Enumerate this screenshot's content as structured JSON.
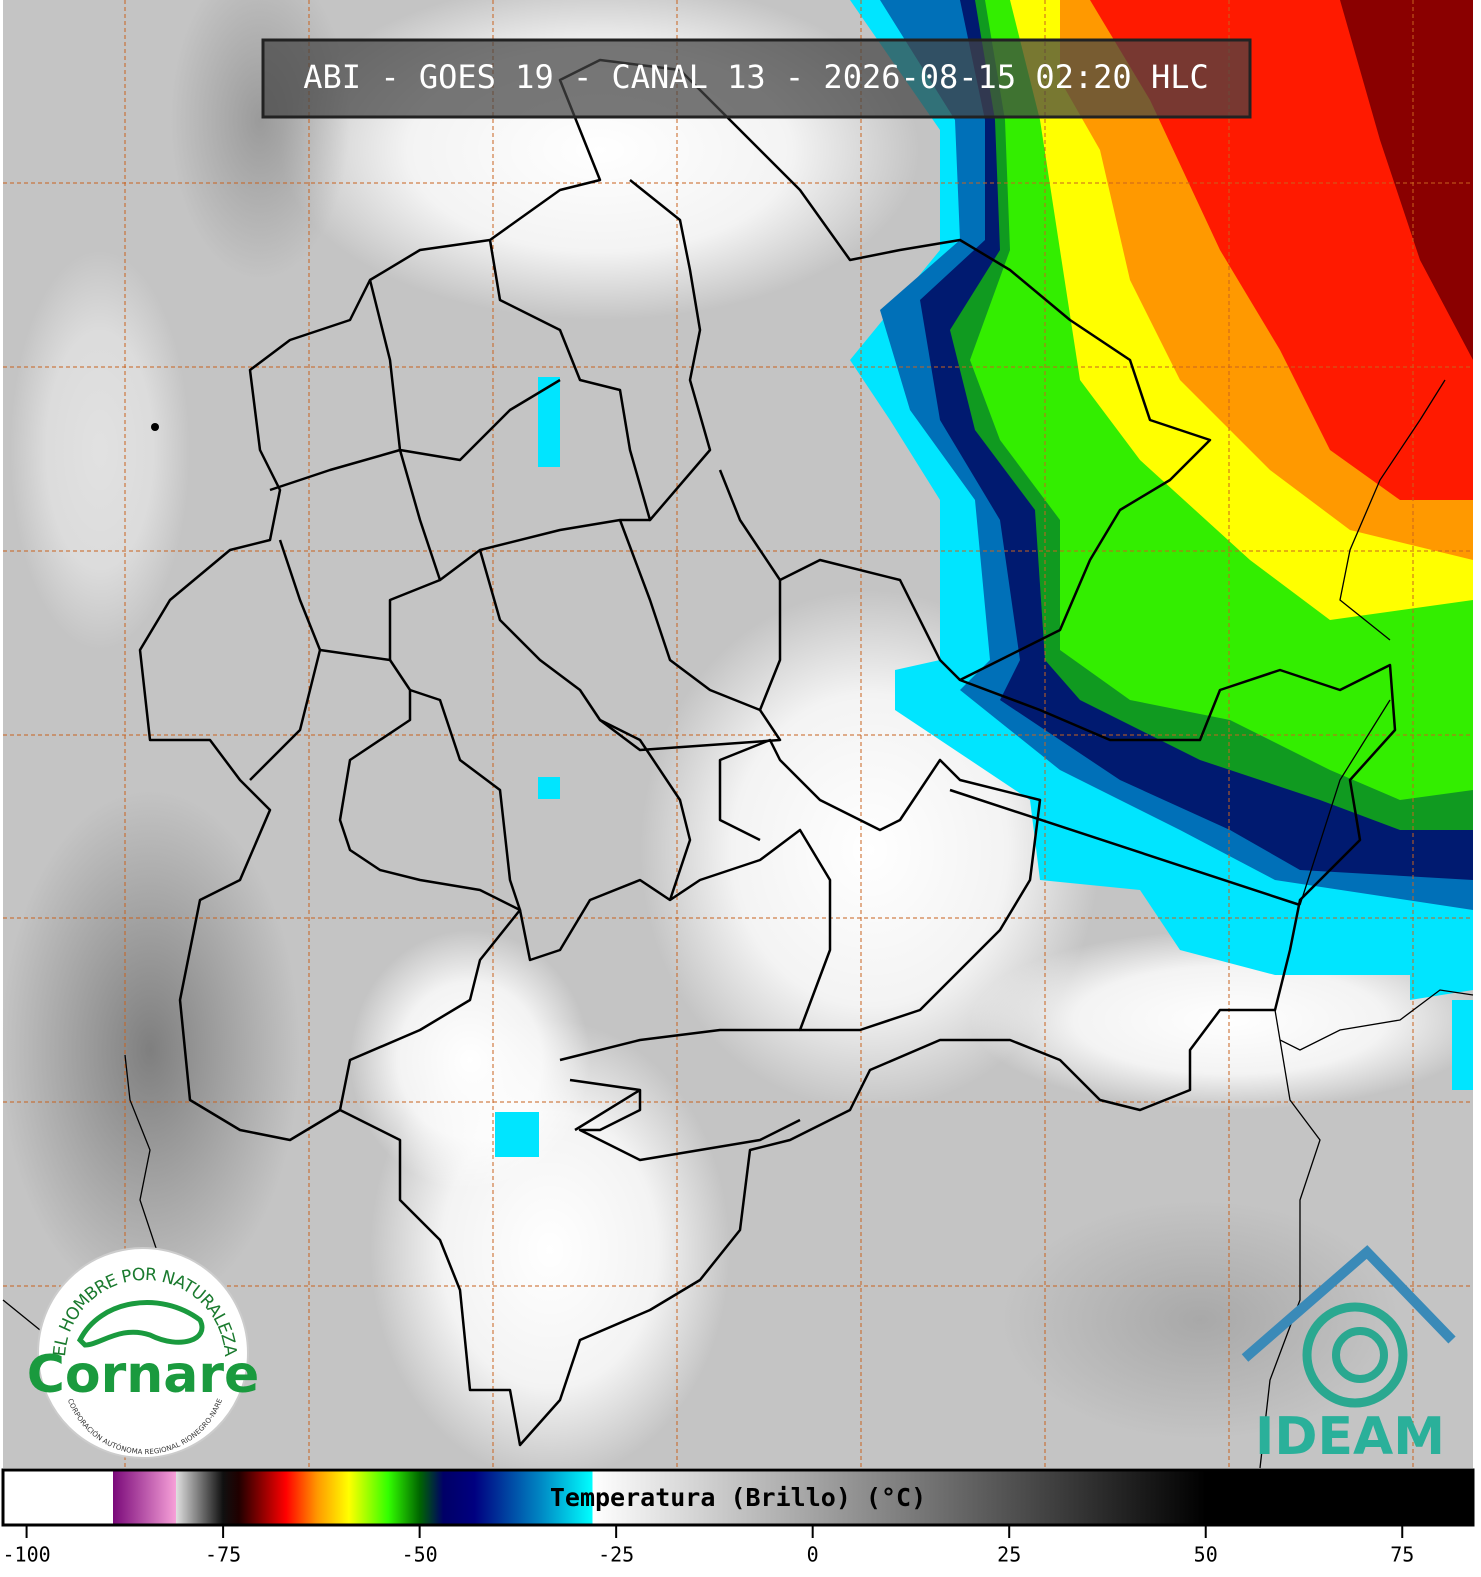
{
  "title": "ABI - GOES 19 - CANAL 13 - 2026-08-15 02:20 HLC",
  "logos": {
    "cornare_motto": "EL HOMBRE POR NATURALEZA",
    "cornare_name": "Cornare",
    "cornare_subtitle": "CORPORACIÓN AUTÓNOMA REGIONAL RIONEGRO-NARE",
    "ideam": "IDEAM"
  },
  "colorbar": {
    "label": "Temperatura (Brillo) (°C)",
    "range": [
      -103,
      84
    ],
    "ticks": [
      -100,
      -75,
      -50,
      -25,
      0,
      25,
      50,
      75
    ],
    "stops": [
      {
        "value": -103,
        "color": "#ffffff"
      },
      {
        "value": -89,
        "color": "#ffffff"
      },
      {
        "value": -89,
        "color": "#7a0a7a"
      },
      {
        "value": -81,
        "color": "#f7a0d8"
      },
      {
        "value": -81,
        "color": "#e0e0e0"
      },
      {
        "value": -75,
        "color": "#101010"
      },
      {
        "value": -73,
        "color": "#200000"
      },
      {
        "value": -67,
        "color": "#ff0000"
      },
      {
        "value": -63,
        "color": "#ff9900"
      },
      {
        "value": -59,
        "color": "#ffff00"
      },
      {
        "value": -54,
        "color": "#33ff00"
      },
      {
        "value": -50,
        "color": "#006600"
      },
      {
        "value": -47,
        "color": "#000066"
      },
      {
        "value": -43,
        "color": "#000080"
      },
      {
        "value": -35,
        "color": "#0080c0"
      },
      {
        "value": -28,
        "color": "#00ffff"
      },
      {
        "value": -28,
        "color": "#ffffff"
      },
      {
        "value": 50,
        "color": "#000000"
      },
      {
        "value": 84,
        "color": "#000000"
      }
    ]
  }
}
